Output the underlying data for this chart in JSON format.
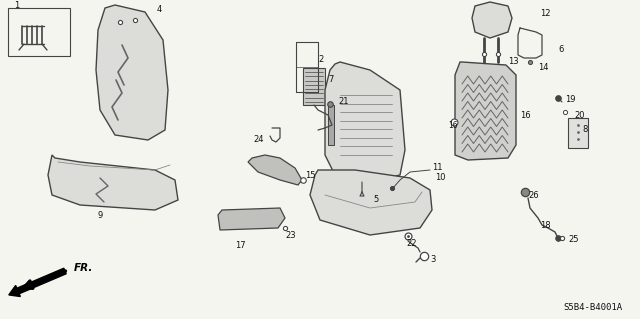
{
  "part_code": "S5B4-B4001A",
  "background_color": "#f5f5f0",
  "line_color": "#444444",
  "text_color": "#111111",
  "fig_width": 6.4,
  "fig_height": 3.19,
  "dpi": 100
}
